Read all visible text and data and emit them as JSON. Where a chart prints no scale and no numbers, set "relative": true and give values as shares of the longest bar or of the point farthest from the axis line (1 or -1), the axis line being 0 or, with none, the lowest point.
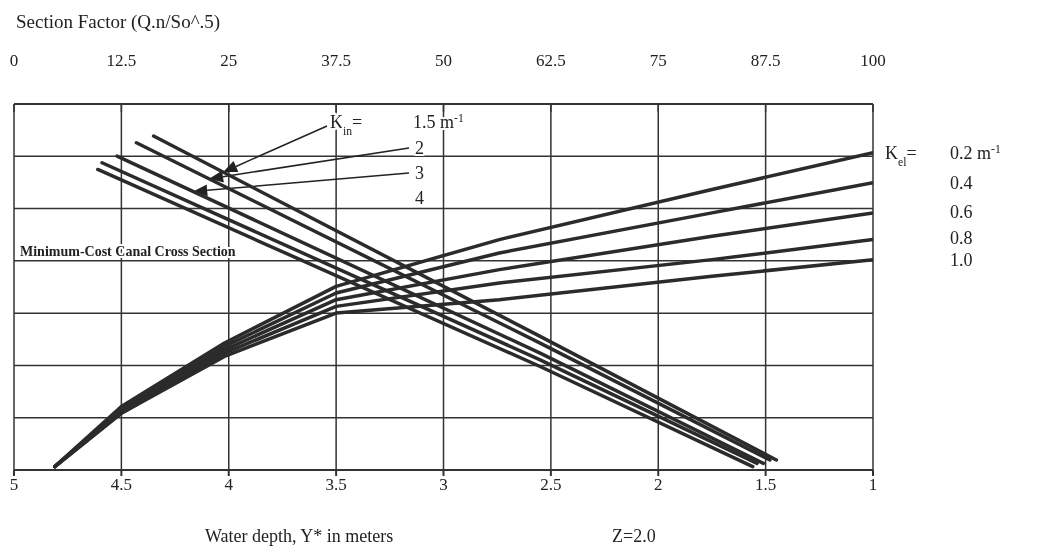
{
  "chart_data": {
    "type": "line",
    "relative": true,
    "xlabel": "Water depth, Y* in meters",
    "x2label": "Section Factor (Q.n/So^.5)",
    "xlim": [
      5,
      1
    ],
    "xticks": [
      5,
      4.5,
      4,
      3.5,
      3,
      2.5,
      2,
      1.5,
      1
    ],
    "x2lim": [
      0,
      100
    ],
    "x2ticks": [
      0,
      12.5,
      25,
      37.5,
      50,
      62.5,
      75,
      87.5,
      100
    ],
    "grid": true,
    "legend": false,
    "marker": "none",
    "line_style": "solid",
    "annotations": [
      "K$_{in}$=",
      "1.5 m$^{-1}$",
      "2",
      "3",
      "4",
      "K$_{el}$=",
      "0.2 m$^{-1}$",
      "0.4",
      "0.6",
      "0.8",
      "1.0",
      "Minimum-Cost Canal Cross Section",
      "Z=2.0"
    ],
    "series": [
      {
        "color": "#2b2b2b",
        "x": [
          4.35,
          2.55,
          1.45
        ],
        "values": [
          1.0,
          0.4,
          0.03
        ]
      },
      {
        "color": "#2b2b2b",
        "x": [
          4.43,
          2.55,
          1.48
        ],
        "values": [
          0.98,
          0.38,
          0.03
        ]
      },
      {
        "color": "#2b2b2b",
        "x": [
          4.52,
          2.55,
          1.51
        ],
        "values": [
          0.94,
          0.35,
          0.02
        ]
      },
      {
        "color": "#2b2b2b",
        "x": [
          4.59,
          2.55,
          1.54
        ],
        "values": [
          0.92,
          0.33,
          0.02
        ]
      },
      {
        "color": "#2b2b2b",
        "x": [
          4.61,
          2.55,
          1.56
        ],
        "values": [
          0.9,
          0.31,
          0.01
        ]
      },
      {
        "color": "#2b2b2b",
        "x": [
          4.81,
          4.5,
          4.02,
          3.5,
          2.74,
          1.75,
          1
        ],
        "values": [
          0.01,
          0.19,
          0.38,
          0.55,
          0.69,
          0.84,
          0.95
        ]
      },
      {
        "color": "#2b2b2b",
        "x": [
          4.81,
          4.5,
          4.02,
          3.5,
          2.74,
          1.75,
          1
        ],
        "values": [
          0.01,
          0.18,
          0.37,
          0.53,
          0.65,
          0.77,
          0.86
        ]
      },
      {
        "color": "#2b2b2b",
        "x": [
          4.81,
          4.5,
          4.02,
          3.5,
          2.74,
          1.75,
          1
        ],
        "values": [
          0.01,
          0.18,
          0.36,
          0.51,
          0.6,
          0.7,
          0.77
        ]
      },
      {
        "color": "#2b2b2b",
        "x": [
          4.81,
          4.5,
          4.02,
          3.5,
          2.74,
          1.75,
          1
        ],
        "values": [
          0.01,
          0.17,
          0.35,
          0.49,
          0.56,
          0.63,
          0.69
        ]
      },
      {
        "color": "#2b2b2b",
        "x": [
          4.81,
          4.5,
          4.02,
          3.5,
          2.74,
          1.75,
          1
        ],
        "values": [
          0.01,
          0.17,
          0.34,
          0.47,
          0.51,
          0.58,
          0.63
        ]
      }
    ]
  }
}
